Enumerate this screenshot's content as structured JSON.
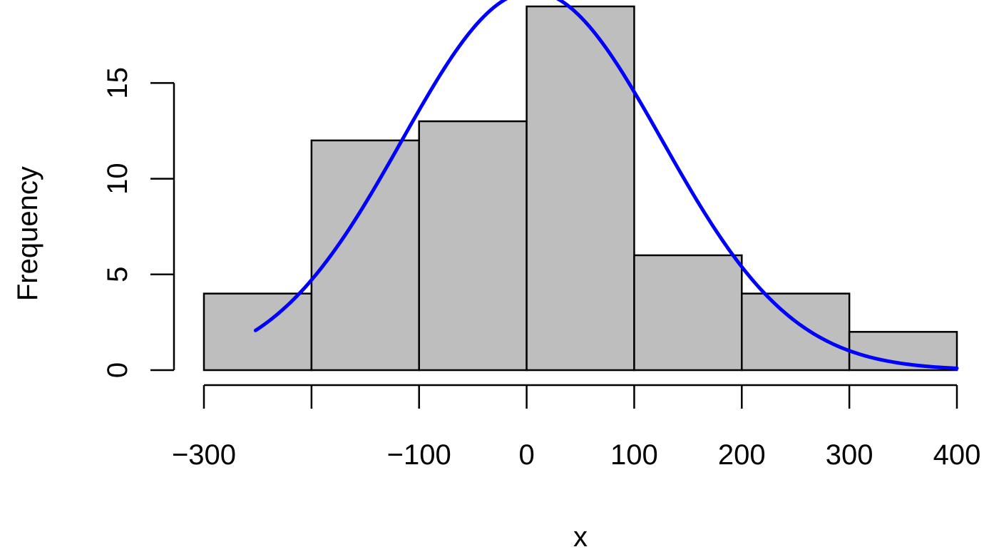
{
  "chart_data": {
    "type": "bar",
    "subtype": "histogram",
    "title": "",
    "xlabel": "x",
    "ylabel": "Frequency",
    "bins": [
      {
        "from": -300,
        "to": -200,
        "count": 4
      },
      {
        "from": -200,
        "to": -100,
        "count": 12
      },
      {
        "from": -100,
        "to": 0,
        "count": 13
      },
      {
        "from": 0,
        "to": 100,
        "count": 19
      },
      {
        "from": 100,
        "to": 200,
        "count": 6
      },
      {
        "from": 200,
        "to": 300,
        "count": 4
      },
      {
        "from": 300,
        "to": 400,
        "count": 2
      }
    ],
    "xlim": [
      -300,
      400
    ],
    "ylim": [
      0,
      19
    ],
    "x_ticks": [
      -300,
      -200,
      -100,
      0,
      100,
      200,
      300,
      400
    ],
    "x_tick_labels": [
      "−300",
      "",
      "−100",
      "0",
      "100",
      "200",
      "300",
      "400"
    ],
    "y_ticks": [
      0,
      5,
      10,
      15
    ],
    "y_tick_labels": [
      "0",
      "5",
      "10",
      "15"
    ],
    "density_curve": {
      "x_start": -252,
      "x_end": 400,
      "points": [
        {
          "x": -252,
          "y": 3.43
        },
        {
          "x": -200,
          "y": 6.1
        },
        {
          "x": -100,
          "y": 13.1
        },
        {
          "x": 0,
          "y": 17.05
        },
        {
          "x": 100,
          "y": 13.3
        },
        {
          "x": 200,
          "y": 6.1
        },
        {
          "x": 300,
          "y": 1.7
        },
        {
          "x": 400,
          "y": 0.28
        }
      ],
      "mean": 5,
      "sd": 121,
      "color": "#0000FF"
    },
    "bar_fill": "#BEBEBE",
    "bar_stroke": "#000000",
    "grid": false,
    "legend": "none"
  }
}
